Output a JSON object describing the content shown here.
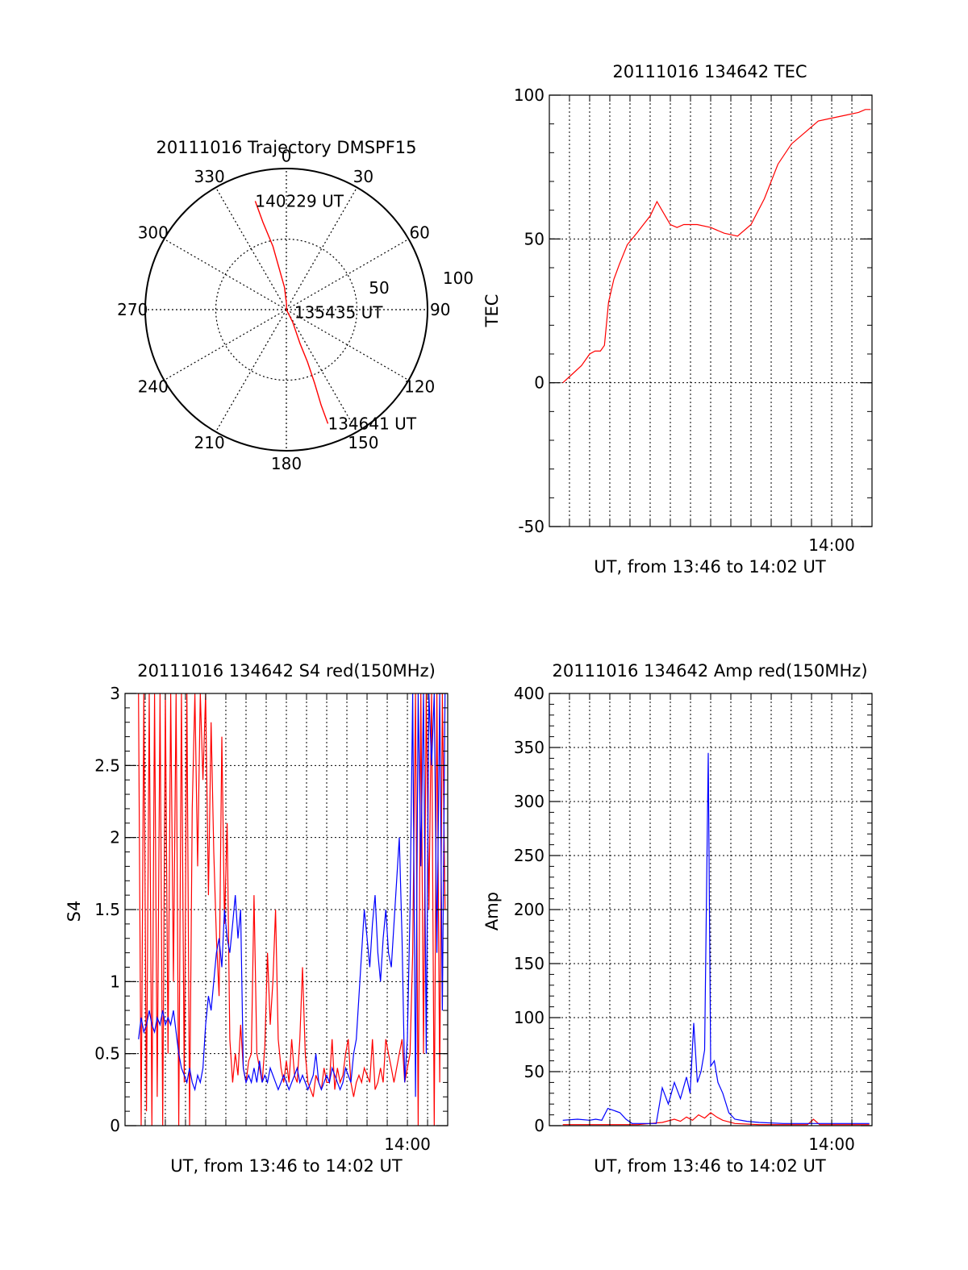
{
  "chart_data": [
    {
      "id": "polar",
      "type": "scatter",
      "title": "20111016 Trajectory DMSPF15",
      "angle_labels": [
        "0",
        "30",
        "60",
        "90",
        "120",
        "150",
        "180",
        "210",
        "240",
        "270",
        "300",
        "330"
      ],
      "radius_labels": [
        "50",
        "100"
      ],
      "rmax": 100,
      "series": [
        {
          "color": "#ff0000",
          "points": [
            [
              344,
              80
            ],
            [
              345,
              64
            ],
            [
              348,
              46
            ],
            [
              350,
              30
            ],
            [
              355,
              16
            ],
            [
              2,
              4
            ],
            [
              100,
              0
            ],
            [
              153,
              10
            ],
            [
              158,
              26
            ],
            [
              158,
              40
            ],
            [
              159,
              56
            ],
            [
              160,
              72
            ],
            [
              160,
              86
            ]
          ]
        }
      ],
      "annotations": [
        {
          "text": "140229 UT",
          "az": 344,
          "r": 80
        },
        {
          "text": "135435 UT",
          "az": 110,
          "r": 6
        },
        {
          "text": "134641 UT",
          "az": 160,
          "r": 86
        }
      ]
    },
    {
      "id": "tec",
      "type": "line",
      "title": "20111016 134642 TEC",
      "ylabel": "TEC",
      "xlabel": "UT, from 13:46 to 14:02 UT",
      "xlim": [
        13.7667,
        14.0333
      ],
      "ylim": [
        -50,
        100
      ],
      "yticks": [
        -50,
        0,
        50,
        100
      ],
      "xticks": [
        {
          "value": 14.0,
          "label": "14:00"
        }
      ],
      "grid": true,
      "series": [
        {
          "color": "#ff0000",
          "x": [
            13.7778,
            13.7856,
            13.7933,
            13.8,
            13.8044,
            13.8089,
            13.8122,
            13.8156,
            13.82,
            13.8244,
            13.8311,
            13.8389,
            13.8444,
            13.85,
            13.8556,
            13.8611,
            13.8667,
            13.8722,
            13.8778,
            13.8889,
            13.9,
            13.9111,
            13.9222,
            13.9333,
            13.9444,
            13.9556,
            13.9667,
            13.9778,
            13.9889,
            14.0,
            14.0111,
            14.0222,
            14.0278,
            14.0322
          ],
          "y": [
            0,
            3,
            6,
            10,
            11,
            11,
            13,
            28,
            36,
            41,
            48,
            52,
            55,
            58,
            63,
            59,
            55,
            54,
            55,
            55,
            54,
            52,
            51,
            55,
            64,
            76,
            83,
            87,
            91,
            92,
            93,
            94,
            95,
            95
          ]
        }
      ]
    },
    {
      "id": "s4",
      "type": "line",
      "title": "20111016 134642 S4 red(150MHz)",
      "ylabel": "S4",
      "xlabel": "UT, from 13:46 to 14:02 UT",
      "xlim": [
        13.7667,
        14.0333
      ],
      "ylim": [
        0,
        3
      ],
      "yticks": [
        0,
        0.5,
        1,
        1.5,
        2,
        2.5,
        3
      ],
      "xticks": [
        {
          "value": 14.0,
          "label": "14:00"
        }
      ],
      "grid": true,
      "series": [
        {
          "color": "#ff0000",
          "x": [
            13.7778,
            13.78,
            13.7822,
            13.7844,
            13.7867,
            13.7889,
            13.7911,
            13.7933,
            13.7956,
            13.7978,
            13.8,
            13.8022,
            13.8044,
            13.8067,
            13.8089,
            13.8111,
            13.8133,
            13.8156,
            13.8178,
            13.82,
            13.8222,
            13.8244,
            13.8267,
            13.8289,
            13.8311,
            13.8333,
            13.8356,
            13.8378,
            13.84,
            13.8422,
            13.8444,
            13.8467,
            13.8489,
            13.8511,
            13.8533,
            13.8556,
            13.8578,
            13.86,
            13.8622,
            13.8644,
            13.8667,
            13.8689,
            13.8711,
            13.8733,
            13.8756,
            13.8778,
            13.88,
            13.8822,
            13.8844,
            13.8867,
            13.8889,
            13.8911,
            13.8933,
            13.8956,
            13.8978,
            13.9,
            13.9022,
            13.9044,
            13.9067,
            13.9089,
            13.9111,
            13.9133,
            13.9156,
            13.9178,
            13.92,
            13.9222,
            13.9244,
            13.9267,
            13.9289,
            13.9311,
            13.9333,
            13.9356,
            13.9378,
            13.94,
            13.9422,
            13.9444,
            13.9467,
            13.9489,
            13.9511,
            13.9533,
            13.9556,
            13.9578,
            13.96,
            13.9622,
            13.9644,
            13.9667,
            13.9689,
            13.9711,
            13.9733,
            13.9756,
            13.9778,
            13.98,
            13.9822,
            13.9844,
            13.9867,
            13.9889,
            13.9911,
            13.9933,
            13.9956,
            13.9978,
            14.0,
            14.0022,
            14.0044,
            14.0067,
            14.0089,
            14.0111,
            14.0133,
            14.0156,
            14.0178,
            14.02,
            14.0222,
            14.0244,
            14.0267,
            14.0289,
            14.0311
          ],
          "y": [
            3,
            0,
            3,
            0.1,
            3,
            0,
            3,
            0.2,
            3,
            0,
            3,
            0.5,
            3,
            1,
            3,
            0,
            3,
            0.3,
            3,
            0,
            2.2,
            3,
            1.8,
            3,
            2.4,
            3,
            1.6,
            2.8,
            1.9,
            1.3,
            0.9,
            2.7,
            1.4,
            2.1,
            0.6,
            0.3,
            0.5,
            0.35,
            0.7,
            0.4,
            0.3,
            0.45,
            0.5,
            1.6,
            0.5,
            0.4,
            0.3,
            0.55,
            1.2,
            0.7,
            1.0,
            1.5,
            0.6,
            0.4,
            0.3,
            0.45,
            0.3,
            0.6,
            0.35,
            0.3,
            0.6,
            1.1,
            0.5,
            0.3,
            0.25,
            0.2,
            0.35,
            0.3,
            0.25,
            0.4,
            0.3,
            0.3,
            0.6,
            0.25,
            0.4,
            0.3,
            0.35,
            0.5,
            0.6,
            0.3,
            0.2,
            0.3,
            0.35,
            0.3,
            0.4,
            0.35,
            0.3,
            0.6,
            0.25,
            0.3,
            0.4,
            0.3,
            0.6,
            0.5,
            0.4,
            0.3,
            0.4,
            0.5,
            0.6,
            0.3,
            0.4,
            0.5,
            1.2,
            3,
            0,
            3,
            0.5,
            3,
            1.5,
            3,
            0,
            3,
            0.3,
            3,
            1.5
          ]
        },
        {
          "color": "#0000ff",
          "x": [
            13.7778,
            13.78,
            13.7822,
            13.7844,
            13.7867,
            13.7889,
            13.7911,
            13.7933,
            13.7956,
            13.7978,
            13.8,
            13.8022,
            13.8044,
            13.8067,
            13.8089,
            13.8111,
            13.8133,
            13.8156,
            13.8178,
            13.82,
            13.8222,
            13.8244,
            13.8267,
            13.8289,
            13.8311,
            13.8333,
            13.8356,
            13.8378,
            13.84,
            13.8422,
            13.8444,
            13.8467,
            13.8489,
            13.8511,
            13.8533,
            13.8556,
            13.8578,
            13.86,
            13.8622,
            13.8644,
            13.8667,
            13.8689,
            13.8711,
            13.8733,
            13.8756,
            13.8778,
            13.88,
            13.8822,
            13.8844,
            13.8867,
            13.8889,
            13.8911,
            13.8933,
            13.8956,
            13.8978,
            13.9,
            13.9022,
            13.9044,
            13.9067,
            13.9089,
            13.9111,
            13.9133,
            13.9156,
            13.9178,
            13.92,
            13.9222,
            13.9244,
            13.9267,
            13.9289,
            13.9311,
            13.9333,
            13.9356,
            13.9378,
            13.94,
            13.9422,
            13.9444,
            13.9467,
            13.9489,
            13.9511,
            13.9533,
            13.9556,
            13.9578,
            13.96,
            13.9622,
            13.9644,
            13.9667,
            13.9689,
            13.9711,
            13.9733,
            13.9756,
            13.9778,
            13.98,
            13.9822,
            13.9844,
            13.9867,
            13.9889,
            13.9911,
            13.9933,
            13.9956,
            13.9978,
            14.0,
            14.0022,
            14.0044,
            14.0067,
            14.0089,
            14.0111,
            14.0133,
            14.0156,
            14.0178,
            14.02,
            14.0222,
            14.0244,
            14.0267,
            14.0289,
            14.0311
          ],
          "y": [
            0.6,
            0.75,
            0.65,
            0.7,
            0.8,
            0.7,
            0.65,
            0.75,
            0.7,
            0.8,
            0.7,
            0.75,
            0.7,
            0.8,
            0.65,
            0.5,
            0.4,
            0.35,
            0.3,
            0.4,
            0.3,
            0.25,
            0.35,
            0.3,
            0.4,
            0.7,
            0.9,
            0.8,
            1.0,
            1.2,
            1.3,
            1.1,
            1.5,
            1.3,
            1.2,
            1.4,
            1.6,
            1.3,
            1.5,
            0.4,
            0.3,
            0.35,
            0.3,
            0.4,
            0.3,
            0.45,
            0.3,
            0.35,
            0.3,
            0.4,
            0.35,
            0.3,
            0.25,
            0.3,
            0.35,
            0.3,
            0.25,
            0.3,
            0.35,
            0.4,
            0.3,
            0.35,
            0.3,
            0.25,
            0.3,
            0.35,
            0.5,
            0.3,
            0.25,
            0.3,
            0.35,
            0.3,
            0.4,
            0.35,
            0.3,
            0.25,
            0.3,
            0.4,
            0.35,
            0.3,
            0.5,
            0.6,
            0.9,
            1.2,
            1.5,
            1.3,
            1.1,
            1.4,
            1.6,
            1.2,
            1.0,
            1.3,
            1.5,
            1.2,
            1.1,
            1.4,
            1.7,
            2.0,
            1.3,
            0.3,
            0.6,
            1.5,
            3,
            0.2,
            3,
            1.8,
            3,
            0.5,
            3,
            2.5,
            3,
            1.2,
            3,
            0.8,
            3
          ]
        }
      ]
    },
    {
      "id": "amp",
      "type": "line",
      "title": "20111016 134642 Amp red(150MHz)",
      "ylabel": "Amp",
      "xlabel": "UT, from 13:46 to 14:02 UT",
      "xlim": [
        13.7667,
        14.0333
      ],
      "ylim": [
        0,
        400
      ],
      "yticks": [
        0,
        50,
        100,
        150,
        200,
        250,
        300,
        350,
        400
      ],
      "xticks": [
        {
          "value": 14.0,
          "label": "14:00"
        }
      ],
      "grid": true,
      "series": [
        {
          "color": "#ff0000",
          "x": [
            13.7778,
            13.8,
            13.82,
            13.84,
            13.85,
            13.86,
            13.87,
            13.875,
            13.88,
            13.885,
            13.89,
            13.895,
            13.9,
            13.905,
            13.91,
            13.92,
            13.94,
            13.96,
            13.98,
            13.985,
            13.99,
            14.0,
            14.02,
            14.0311
          ],
          "y": [
            1,
            1,
            1,
            1,
            2,
            3,
            6,
            4,
            8,
            5,
            10,
            7,
            12,
            8,
            5,
            2,
            1,
            1,
            1,
            6,
            1,
            1,
            1,
            1
          ]
        },
        {
          "color": "#0000ff",
          "x": [
            13.7778,
            13.79,
            13.8,
            13.805,
            13.81,
            13.815,
            13.82,
            13.825,
            13.83,
            13.835,
            13.84,
            13.845,
            13.85,
            13.855,
            13.86,
            13.865,
            13.87,
            13.875,
            13.88,
            13.883,
            13.886,
            13.889,
            13.892,
            13.895,
            13.898,
            13.9,
            13.903,
            13.906,
            13.91,
            13.915,
            13.92,
            13.93,
            13.94,
            13.96,
            13.98,
            14.0,
            14.02,
            14.0311
          ],
          "y": [
            5,
            6,
            5,
            6,
            5,
            16,
            14,
            12,
            6,
            2,
            2,
            2,
            2,
            2,
            35,
            20,
            40,
            25,
            45,
            30,
            95,
            40,
            50,
            70,
            345,
            55,
            60,
            40,
            30,
            12,
            6,
            4,
            3,
            2,
            2,
            2,
            2,
            2
          ]
        }
      ]
    }
  ]
}
